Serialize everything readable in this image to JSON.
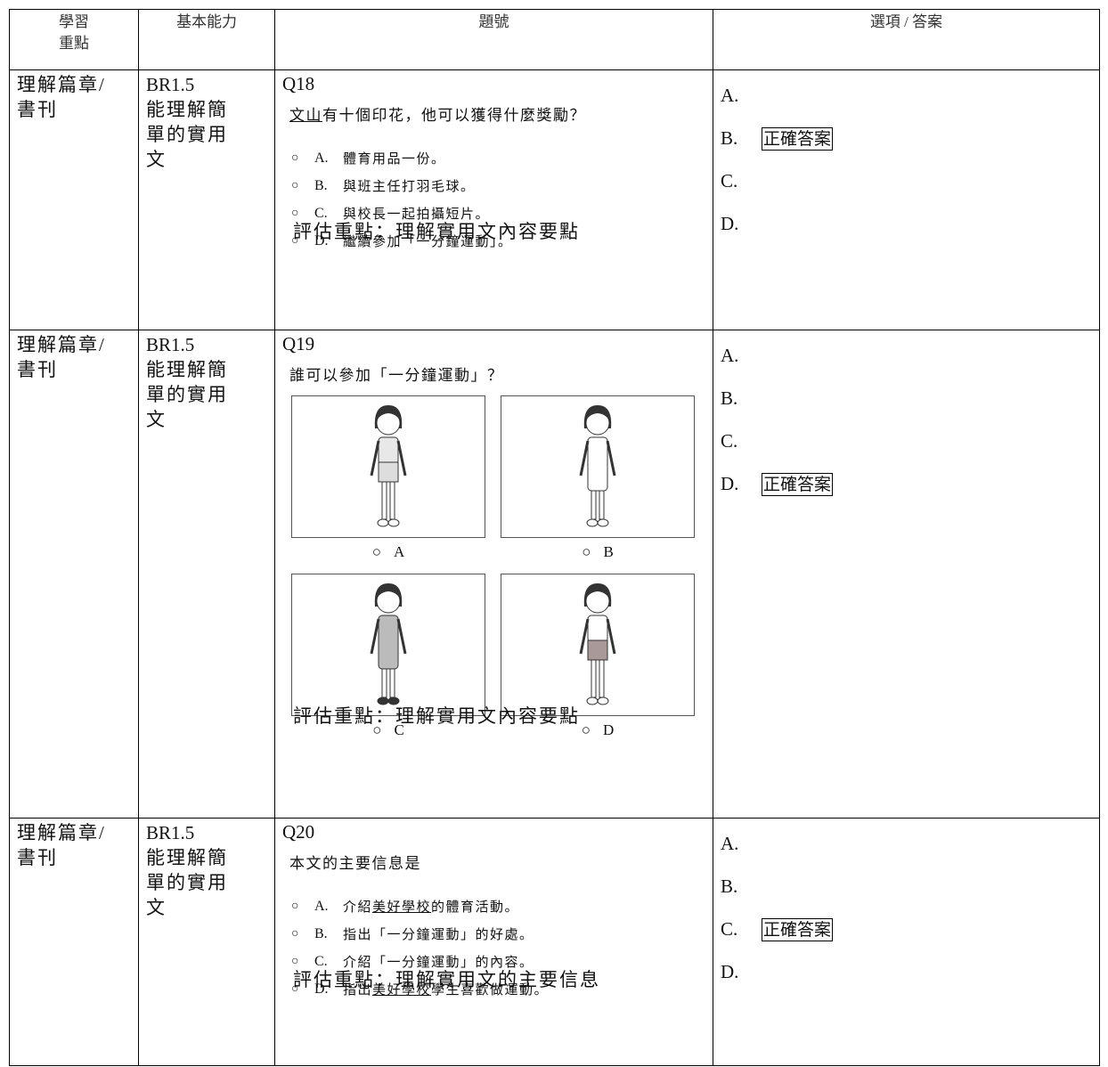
{
  "table": {
    "headers": [
      [
        "學習",
        "重點"
      ],
      [
        "基本能力"
      ],
      [
        "題號"
      ],
      [
        "選項 / 答案"
      ]
    ],
    "rows": [
      {
        "focus": [
          "理解篇章/",
          "書刊"
        ],
        "skill_code": "BR1.5",
        "skill": [
          "能理解簡",
          "單的實用",
          "文"
        ],
        "question": "Q18",
        "prompt": [
          {
            "text": "文山",
            "underline": true
          },
          {
            "text": "有十個印花，他可以獲得什麼獎勵？",
            "underline": false
          }
        ],
        "options": [
          {
            "letter": "A.",
            "parts": [
              {
                "text": "體育用品一份。",
                "underline": false
              }
            ]
          },
          {
            "letter": "B.",
            "parts": [
              {
                "text": "與班主任打羽毛球。",
                "underline": false
              }
            ]
          },
          {
            "letter": "C.",
            "parts": [
              {
                "text": "與校長一起拍攝短片。",
                "underline": false
              }
            ]
          },
          {
            "letter": "D.",
            "parts": [
              {
                "text": "繼續參加「一分鐘運動」。",
                "underline": false
              }
            ]
          }
        ],
        "assessment": "評估重點：理解實用文內容要點",
        "answers": [
          {
            "letter": "A."
          },
          {
            "letter": "B.",
            "note": "正確答案"
          },
          {
            "letter": "C."
          },
          {
            "letter": "D."
          }
        ]
      },
      {
        "focus": [
          "理解篇章/",
          "書刊"
        ],
        "skill_code": "BR1.5",
        "skill": [
          "能理解簡",
          "單的實用",
          "文"
        ],
        "question": "Q19",
        "prompt": [
          {
            "text": "誰可以參加「一分鐘運動」？",
            "underline": false
          }
        ],
        "image_options": [
          "A",
          "B",
          "C",
          "D"
        ],
        "assessment": "評估重點：理解實用文內容要點",
        "answers": [
          {
            "letter": "A."
          },
          {
            "letter": "B."
          },
          {
            "letter": "C."
          },
          {
            "letter": "D.",
            "note": "正確答案"
          }
        ]
      },
      {
        "focus": [
          "理解篇章/",
          "書刊"
        ],
        "skill_code": "BR1.5",
        "skill": [
          "能理解簡",
          "單的實用",
          "文"
        ],
        "question": "Q20",
        "prompt": [
          {
            "text": "本文的主要信息是",
            "underline": false
          }
        ],
        "options": [
          {
            "letter": "A.",
            "parts": [
              {
                "text": "介紹",
                "underline": false
              },
              {
                "text": "美好學校",
                "underline": true
              },
              {
                "text": "的體育活動。",
                "underline": false
              }
            ]
          },
          {
            "letter": "B.",
            "parts": [
              {
                "text": "指出「一分鐘運動」的好處。",
                "underline": false
              }
            ]
          },
          {
            "letter": "C.",
            "parts": [
              {
                "text": "介紹「一分鐘運動」的內容。",
                "underline": false
              }
            ]
          },
          {
            "letter": "D.",
            "parts": [
              {
                "text": "指出",
                "underline": false
              },
              {
                "text": "美好學校",
                "underline": true
              },
              {
                "text": "學生喜歡做運動。",
                "underline": false
              }
            ]
          }
        ],
        "assessment": "評估重點：理解實用文的主要信息",
        "answers": [
          {
            "letter": "A."
          },
          {
            "letter": "B."
          },
          {
            "letter": "C.",
            "note": "正確答案"
          },
          {
            "letter": "D."
          }
        ]
      }
    ]
  }
}
